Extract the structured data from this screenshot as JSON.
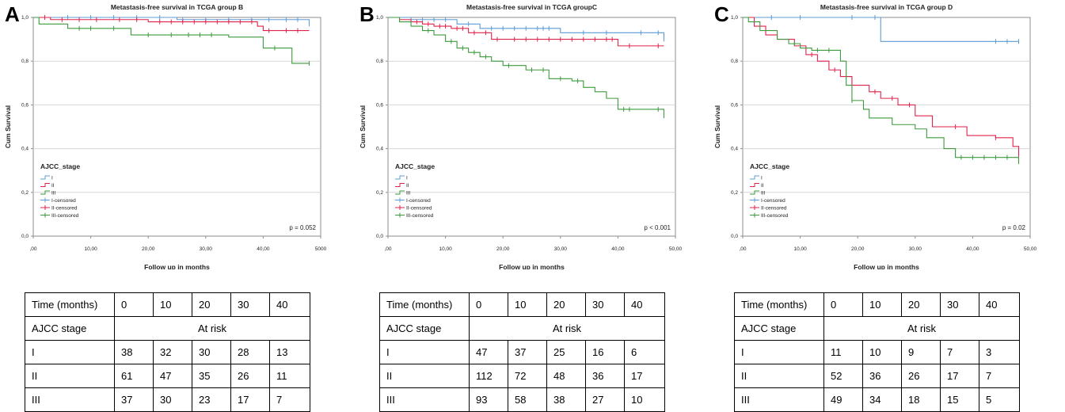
{
  "panels": [
    {
      "letter": "A",
      "table": {
        "header_label": "Time (months)",
        "times": [
          "0",
          "10",
          "20",
          "30",
          "40"
        ],
        "stage_label": "AJCC stage",
        "at_risk_label": "At risk",
        "rows": [
          {
            "stage": "I",
            "values": [
              "38",
              "32",
              "30",
              "28",
              "13"
            ]
          },
          {
            "stage": "II",
            "values": [
              "61",
              "47",
              "35",
              "26",
              "11"
            ]
          },
          {
            "stage": "III",
            "values": [
              "37",
              "30",
              "23",
              "17",
              "7"
            ]
          }
        ]
      }
    },
    {
      "letter": "B",
      "table": {
        "header_label": "Time (months)",
        "times": [
          "0",
          "10",
          "20",
          "30",
          "40"
        ],
        "stage_label": "AJCC stage",
        "at_risk_label": "At risk",
        "rows": [
          {
            "stage": "I",
            "values": [
              "47",
              "37",
              "25",
              "16",
              "6"
            ]
          },
          {
            "stage": "II",
            "values": [
              "112",
              "72",
              "48",
              "36",
              "17"
            ]
          },
          {
            "stage": "III",
            "values": [
              "93",
              "58",
              "38",
              "27",
              "10"
            ]
          }
        ]
      }
    },
    {
      "letter": "C",
      "table": {
        "header_label": "Time (months)",
        "times": [
          "0",
          "10",
          "20",
          "30",
          "40"
        ],
        "stage_label": "AJCC stage",
        "at_risk_label": "At risk",
        "rows": [
          {
            "stage": "I",
            "values": [
              "11",
              "10",
              "9",
              "7",
              "3"
            ]
          },
          {
            "stage": "II",
            "values": [
              "52",
              "36",
              "26",
              "17",
              "7"
            ]
          },
          {
            "stage": "III",
            "values": [
              "49",
              "34",
              "18",
              "15",
              "5"
            ]
          }
        ]
      }
    }
  ],
  "chart_data": [
    {
      "type": "line",
      "title": "Metastasis-free survival in TCGA group B",
      "xlabel": "Follow up in months",
      "ylabel": "Cum Survival",
      "xlim": [
        0,
        50
      ],
      "ylim": [
        0,
        1
      ],
      "xticks": [
        ",00",
        "10,00",
        "20,00",
        "30,00",
        "40,00",
        "5000"
      ],
      "yticks": [
        "0,0",
        "0,2",
        "0,4",
        "0,6",
        "0,8",
        "1,0"
      ],
      "grid": true,
      "legend_title": "AJCC_stage",
      "legend_position": "bottom-left",
      "legend": [
        "I",
        "II",
        "III",
        "I-censored",
        "II-censored",
        "III-censored"
      ],
      "annotation": "p = 0.052",
      "series": [
        {
          "name": "I",
          "color": "#5b9bd5",
          "x": [
            0,
            25,
            48
          ],
          "y": [
            1.0,
            0.99,
            0.97
          ],
          "censored_x": [
            2,
            6,
            10,
            14,
            18,
            22,
            26,
            30,
            34,
            38,
            41,
            44,
            46,
            48
          ]
        },
        {
          "name": "II",
          "color": "#e0224a",
          "x": [
            0,
            3,
            20,
            39,
            40,
            48
          ],
          "y": [
            1.0,
            0.99,
            0.98,
            0.96,
            0.94,
            0.94
          ],
          "censored_x": [
            2,
            5,
            8,
            11,
            15,
            18,
            22,
            24,
            26,
            28,
            30,
            32,
            34,
            36,
            38,
            41,
            44,
            46
          ]
        },
        {
          "name": "III",
          "color": "#3c9a3c",
          "x": [
            0,
            1,
            6,
            17,
            34,
            40,
            45,
            48
          ],
          "y": [
            1.0,
            0.97,
            0.95,
            0.92,
            0.91,
            0.86,
            0.79,
            0.79
          ],
          "censored_x": [
            8,
            10,
            14,
            20,
            24,
            27,
            29,
            31,
            42,
            48
          ]
        }
      ]
    },
    {
      "type": "line",
      "title": "Metastasis-free survival in TCGA groupC",
      "xlabel": "Follow up in months",
      "ylabel": "Cum Survival",
      "xlim": [
        0,
        50
      ],
      "ylim": [
        0,
        1
      ],
      "xticks": [
        ",00",
        "10,00",
        "20,00",
        "30,00",
        "40,00",
        "50,00"
      ],
      "yticks": [
        "0,0",
        "0,2",
        "0,4",
        "0,6",
        "0,8",
        "1,0"
      ],
      "grid": true,
      "legend_title": "AJCC_stage",
      "legend_position": "bottom-left",
      "legend": [
        "I",
        "II",
        "III",
        "I-censored",
        "II-censored",
        "III-censored"
      ],
      "annotation": "p < 0.001",
      "series": [
        {
          "name": "I",
          "color": "#5b9bd5",
          "x": [
            0,
            4,
            12,
            16,
            30,
            48
          ],
          "y": [
            1.0,
            0.99,
            0.97,
            0.95,
            0.93,
            0.89
          ],
          "censored_x": [
            6,
            8,
            10,
            14,
            18,
            20,
            22,
            24,
            26,
            27,
            28,
            34,
            38,
            44,
            47
          ]
        },
        {
          "name": "II",
          "color": "#e0224a",
          "x": [
            0,
            2,
            4,
            6,
            8,
            11,
            14,
            18,
            40,
            48
          ],
          "y": [
            1.0,
            0.99,
            0.98,
            0.97,
            0.96,
            0.95,
            0.93,
            0.9,
            0.87,
            0.87
          ],
          "censored_x": [
            5,
            7,
            9,
            10,
            12,
            13,
            15,
            17,
            19,
            22,
            24,
            26,
            28,
            30,
            32,
            34,
            36,
            38,
            39,
            42,
            47
          ]
        },
        {
          "name": "III",
          "color": "#3c9a3c",
          "x": [
            0,
            2,
            4,
            6,
            8,
            10,
            12,
            14,
            16,
            18,
            20,
            24,
            28,
            32,
            34,
            36,
            38,
            40,
            48
          ],
          "y": [
            1.0,
            0.98,
            0.96,
            0.94,
            0.92,
            0.89,
            0.86,
            0.84,
            0.82,
            0.8,
            0.78,
            0.76,
            0.72,
            0.71,
            0.68,
            0.66,
            0.63,
            0.58,
            0.54
          ],
          "censored_x": [
            7,
            11,
            13,
            15,
            17,
            21,
            25,
            27,
            30,
            33,
            41,
            42,
            47
          ]
        }
      ]
    },
    {
      "type": "line",
      "title": "Metastasis-free survival in TCGA group D",
      "xlabel": "Follow up in months",
      "ylabel": "Cum Survival",
      "xlim": [
        0,
        50
      ],
      "ylim": [
        0,
        1
      ],
      "xticks": [
        ",00",
        "10,00",
        "20,00",
        "30,00",
        "40,00",
        "50,00"
      ],
      "yticks": [
        "0,0",
        "0,2",
        "0,4",
        "0,6",
        "0,8",
        "1,0"
      ],
      "grid": true,
      "legend_title": "AJCC_stage",
      "legend_position": "bottom-left",
      "legend": [
        "I",
        "II",
        "III",
        "I-censored",
        "II-censored",
        "III-censored"
      ],
      "annotation": "p = 0.02",
      "series": [
        {
          "name": "I",
          "color": "#5b9bd5",
          "x": [
            0,
            24,
            48
          ],
          "y": [
            1.0,
            0.89,
            0.89
          ],
          "censored_x": [
            5,
            10,
            19,
            23,
            44,
            46,
            48
          ]
        },
        {
          "name": "II",
          "color": "#e0224a",
          "x": [
            0,
            2,
            4,
            6,
            9,
            11,
            13,
            15,
            17,
            19,
            22,
            24,
            27,
            30,
            33,
            39,
            44,
            47,
            48
          ],
          "y": [
            1.0,
            0.96,
            0.92,
            0.9,
            0.87,
            0.83,
            0.8,
            0.76,
            0.73,
            0.69,
            0.66,
            0.63,
            0.6,
            0.55,
            0.5,
            0.46,
            0.45,
            0.41,
            0.37
          ],
          "censored_x": [
            12,
            16,
            23,
            26,
            29,
            37,
            44,
            48
          ]
        },
        {
          "name": "III",
          "color": "#3c9a3c",
          "x": [
            0,
            1,
            3,
            6,
            8,
            10,
            12,
            14,
            17,
            18,
            19,
            21,
            22,
            26,
            30,
            32,
            35,
            37,
            48
          ],
          "y": [
            1.0,
            0.98,
            0.94,
            0.9,
            0.88,
            0.86,
            0.85,
            0.85,
            0.8,
            0.69,
            0.62,
            0.58,
            0.54,
            0.51,
            0.49,
            0.45,
            0.4,
            0.36,
            0.34
          ],
          "censored_x": [
            9,
            13,
            15,
            19,
            38,
            40,
            42,
            44,
            46,
            48
          ]
        }
      ]
    }
  ]
}
